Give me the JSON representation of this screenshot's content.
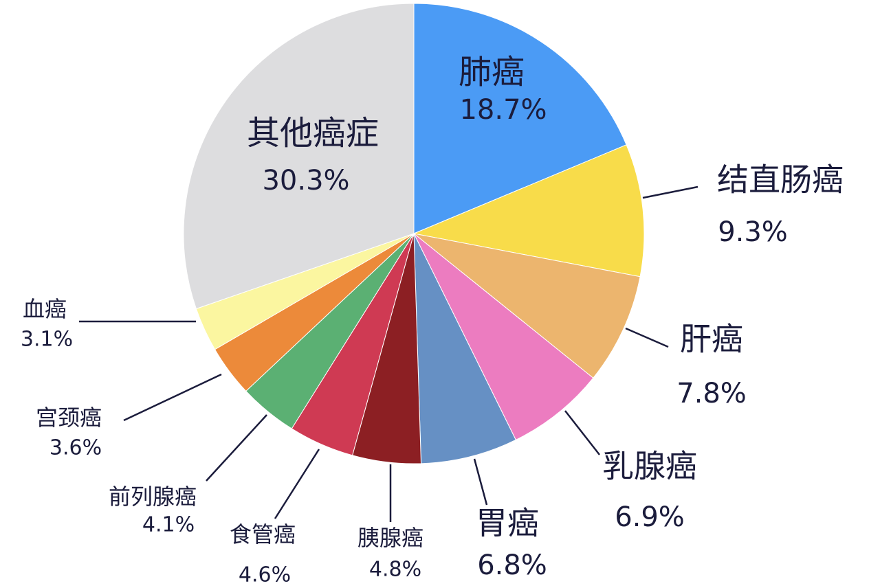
{
  "chart_data": {
    "type": "pie",
    "categories": [
      "肺癌",
      "结直肠癌",
      "肝癌",
      "乳腺癌",
      "胃癌",
      "胰腺癌",
      "食管癌",
      "前列腺癌",
      "宫颈癌",
      "血癌",
      "其他癌症"
    ],
    "values": [
      18.7,
      9.3,
      7.8,
      6.9,
      6.8,
      4.8,
      4.6,
      4.1,
      3.6,
      3.1,
      30.3
    ],
    "value_labels": [
      "18.7%",
      "9.3%",
      "7.8%",
      "6.9%",
      "6.8%",
      "4.8%",
      "4.6%",
      "4.1%",
      "3.6%",
      "3.1%",
      "30.3%"
    ],
    "colors": [
      "#4b9bf5",
      "#f8dc4a",
      "#ecb56e",
      "#ec7cc0",
      "#6690c4",
      "#8c1f23",
      "#cf3a53",
      "#5bb073",
      "#ec8a3a",
      "#fbf6a0",
      "#dddddf"
    ]
  }
}
